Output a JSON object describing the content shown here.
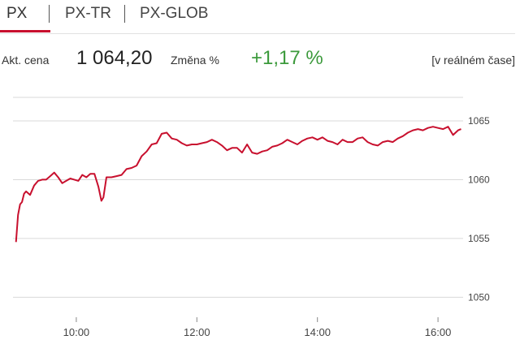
{
  "tabs": [
    {
      "label": "PX",
      "active": true
    },
    {
      "label": "PX-TR",
      "active": false
    },
    {
      "label": "PX-GLOB",
      "active": false
    }
  ],
  "quote": {
    "price_label": "Akt. cena",
    "price": "1 064,20",
    "change_label": "Změna %",
    "change": "+1,17 %",
    "realtime": "[v reálném čase]"
  },
  "colors": {
    "accent": "#c8102e",
    "positive": "#3c9a3c",
    "line": "#c8102e",
    "grid": "#d9d9d9"
  },
  "chart_data": {
    "type": "line",
    "ylim": [
      1048.3,
      1067.0
    ],
    "yticks": [
      1050,
      1055,
      1060,
      1065
    ],
    "xlim": [
      "08:57",
      "16:25"
    ],
    "xticks": [
      "10:00",
      "12:00",
      "14:00",
      "16:00"
    ],
    "grid": true,
    "series": [
      {
        "x": [
          "09:00",
          "09:02",
          "09:04",
          "09:06",
          "09:08",
          "09:10",
          "09:14",
          "09:18",
          "09:22",
          "09:26",
          "09:30",
          "09:34",
          "09:38",
          "09:42",
          "09:46",
          "09:50",
          "09:54",
          "09:58",
          "10:02",
          "10:06",
          "10:10",
          "10:14",
          "10:18",
          "10:22",
          "10:25",
          "10:27",
          "10:30",
          "10:35",
          "10:40",
          "10:45",
          "10:50",
          "10:55",
          "11:00",
          "11:05",
          "11:10",
          "11:15",
          "11:20",
          "11:25",
          "11:30",
          "11:35",
          "11:40",
          "11:45",
          "11:50",
          "11:55",
          "12:00",
          "12:05",
          "12:10",
          "12:15",
          "12:20",
          "12:25",
          "12:30",
          "12:35",
          "12:40",
          "12:45",
          "12:50",
          "12:55",
          "13:00",
          "13:05",
          "13:10",
          "13:15",
          "13:20",
          "13:25",
          "13:30",
          "13:35",
          "13:40",
          "13:45",
          "13:50",
          "13:55",
          "14:00",
          "14:05",
          "14:10",
          "14:15",
          "14:20",
          "14:25",
          "14:30",
          "14:35",
          "14:40",
          "14:45",
          "14:50",
          "14:55",
          "15:00",
          "15:05",
          "15:10",
          "15:15",
          "15:20",
          "15:25",
          "15:30",
          "15:35",
          "15:40",
          "15:45",
          "15:50",
          "15:55",
          "16:00",
          "16:05",
          "16:10",
          "16:15",
          "16:20",
          "16:23"
        ],
        "values": [
          1054.7,
          1057.0,
          1057.9,
          1058.1,
          1058.8,
          1059.0,
          1058.7,
          1059.5,
          1059.9,
          1060.0,
          1060.0,
          1060.3,
          1060.6,
          1060.2,
          1059.7,
          1059.9,
          1060.1,
          1060.0,
          1059.9,
          1060.4,
          1060.2,
          1060.5,
          1060.5,
          1059.4,
          1058.2,
          1058.5,
          1060.2,
          1060.2,
          1060.3,
          1060.4,
          1060.9,
          1061.0,
          1061.2,
          1062.0,
          1062.4,
          1063.0,
          1063.1,
          1063.9,
          1064.0,
          1063.5,
          1063.4,
          1063.1,
          1062.9,
          1063.0,
          1063.0,
          1063.1,
          1063.2,
          1063.4,
          1063.2,
          1062.9,
          1062.5,
          1062.7,
          1062.7,
          1062.3,
          1063.0,
          1062.3,
          1062.2,
          1062.4,
          1062.5,
          1062.8,
          1062.9,
          1063.1,
          1063.4,
          1063.2,
          1063.0,
          1063.3,
          1063.5,
          1063.6,
          1063.4,
          1063.6,
          1063.3,
          1063.2,
          1063.0,
          1063.4,
          1063.2,
          1063.2,
          1063.5,
          1063.6,
          1063.2,
          1063.0,
          1062.9,
          1063.2,
          1063.3,
          1063.2,
          1063.5,
          1063.7,
          1064.0,
          1064.2,
          1064.3,
          1064.2,
          1064.4,
          1064.5,
          1064.4,
          1064.3,
          1064.5,
          1063.8,
          1064.2,
          1064.3
        ]
      }
    ]
  }
}
